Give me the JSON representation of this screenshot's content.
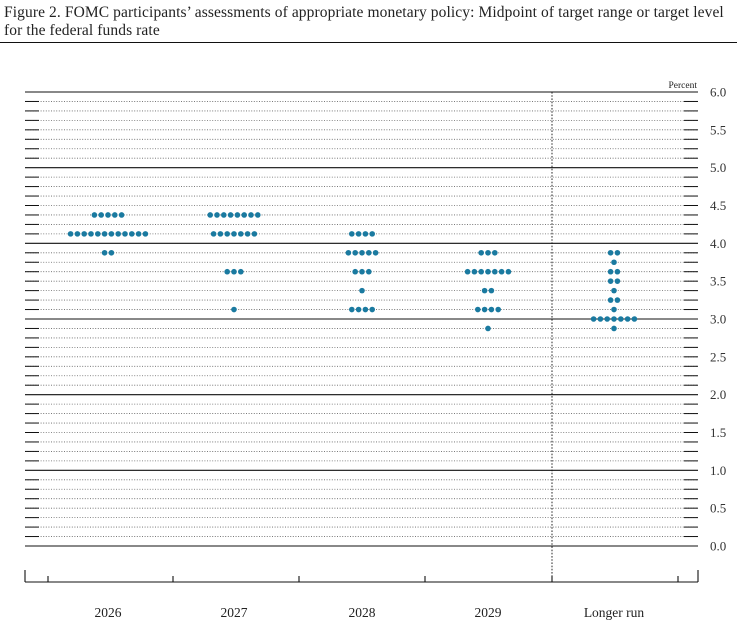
{
  "title": "Figure 2. FOMC participants’ assessments of appropriate monetary policy: Midpoint of target range or target level for the federal funds rate",
  "chart_data": {
    "type": "scatter",
    "unit": "Percent",
    "categories": [
      "2026",
      "2027",
      "2028",
      "2029",
      "Longer run"
    ],
    "ylim": [
      0,
      6
    ],
    "y_ticks": [
      "0.0",
      "0.5",
      "1.0",
      "1.5",
      "2.0",
      "2.5",
      "3.0",
      "3.5",
      "4.0",
      "4.5",
      "5.0",
      "5.5",
      "6.0"
    ],
    "dot_color": "#1a7aa0",
    "grid": "major solid lines at whole percents; dotted lines at each 0.125 step",
    "series": [
      {
        "category": "2026",
        "points": [
          {
            "y": 3.875,
            "count": 2
          },
          {
            "y": 4.125,
            "count": 12
          },
          {
            "y": 4.375,
            "count": 5
          }
        ]
      },
      {
        "category": "2027",
        "points": [
          {
            "y": 3.125,
            "count": 1
          },
          {
            "y": 3.625,
            "count": 3
          },
          {
            "y": 4.125,
            "count": 7
          },
          {
            "y": 4.375,
            "count": 8
          }
        ]
      },
      {
        "category": "2028",
        "points": [
          {
            "y": 3.125,
            "count": 4
          },
          {
            "y": 3.375,
            "count": 1
          },
          {
            "y": 3.625,
            "count": 3
          },
          {
            "y": 3.875,
            "count": 5
          },
          {
            "y": 4.125,
            "count": 4
          }
        ]
      },
      {
        "category": "2029",
        "points": [
          {
            "y": 2.875,
            "count": 1
          },
          {
            "y": 3.125,
            "count": 4
          },
          {
            "y": 3.375,
            "count": 2
          },
          {
            "y": 3.625,
            "count": 7
          },
          {
            "y": 3.875,
            "count": 3
          }
        ]
      },
      {
        "category": "Longer run",
        "points": [
          {
            "y": 2.875,
            "count": 1
          },
          {
            "y": 3.0,
            "count": 7
          },
          {
            "y": 3.125,
            "count": 1
          },
          {
            "y": 3.25,
            "count": 2
          },
          {
            "y": 3.375,
            "count": 1
          },
          {
            "y": 3.5,
            "count": 2
          },
          {
            "y": 3.625,
            "count": 2
          },
          {
            "y": 3.75,
            "count": 1
          },
          {
            "y": 3.875,
            "count": 2
          }
        ]
      }
    ]
  }
}
